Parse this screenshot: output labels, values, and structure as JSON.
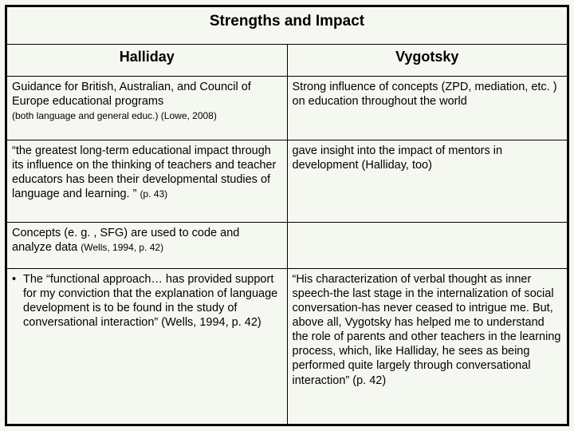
{
  "title": "Strengths and Impact",
  "columns": {
    "left": "Halliday",
    "right": "Vygotsky"
  },
  "rows": [
    {
      "left_main": "Guidance for British, Australian, and Council of Europe educational programs",
      "left_note": "(both language and general educ.) (Lowe, 2008)",
      "right": "Strong influence of concepts (ZPD, mediation, etc. ) on education throughout the world"
    },
    {
      "left_main": "“the greatest long-term educational impact through its influence on the thinking of teachers and teacher educators has been their developmental studies of language and learning. ”",
      "left_page": "(p. 43)",
      "right": "gave insight into the impact of mentors in development (Halliday, too)"
    },
    {
      "left_main": "Concepts (e. g. , SFG) are used to code and analyze data",
      "left_note": "(Wells, 1994, p. 42)",
      "right": ""
    },
    {
      "bullet_marker": "•",
      "left_main": "The “functional approach… has provided support for my conviction that the explanation of language development is to be found in the study of conversational interaction” (Wells, 1994, p. 42)",
      "right": "“His characterization of verbal thought as inner speech-the last stage in the internalization of social conversation-has never ceased to intrigue me. But, above all, Vygotsky has helped me to understand the role of parents and other teachers in the learning process, which, like Halliday, he sees as being performed quite largely through conversational interaction”  (p. 42)"
    }
  ],
  "style": {
    "background_color": "#f5f8f0",
    "border_color": "#000000",
    "title_fontsize": 19,
    "header_fontsize": 18,
    "body_fontsize": 14.5,
    "small_fontsize": 12
  }
}
